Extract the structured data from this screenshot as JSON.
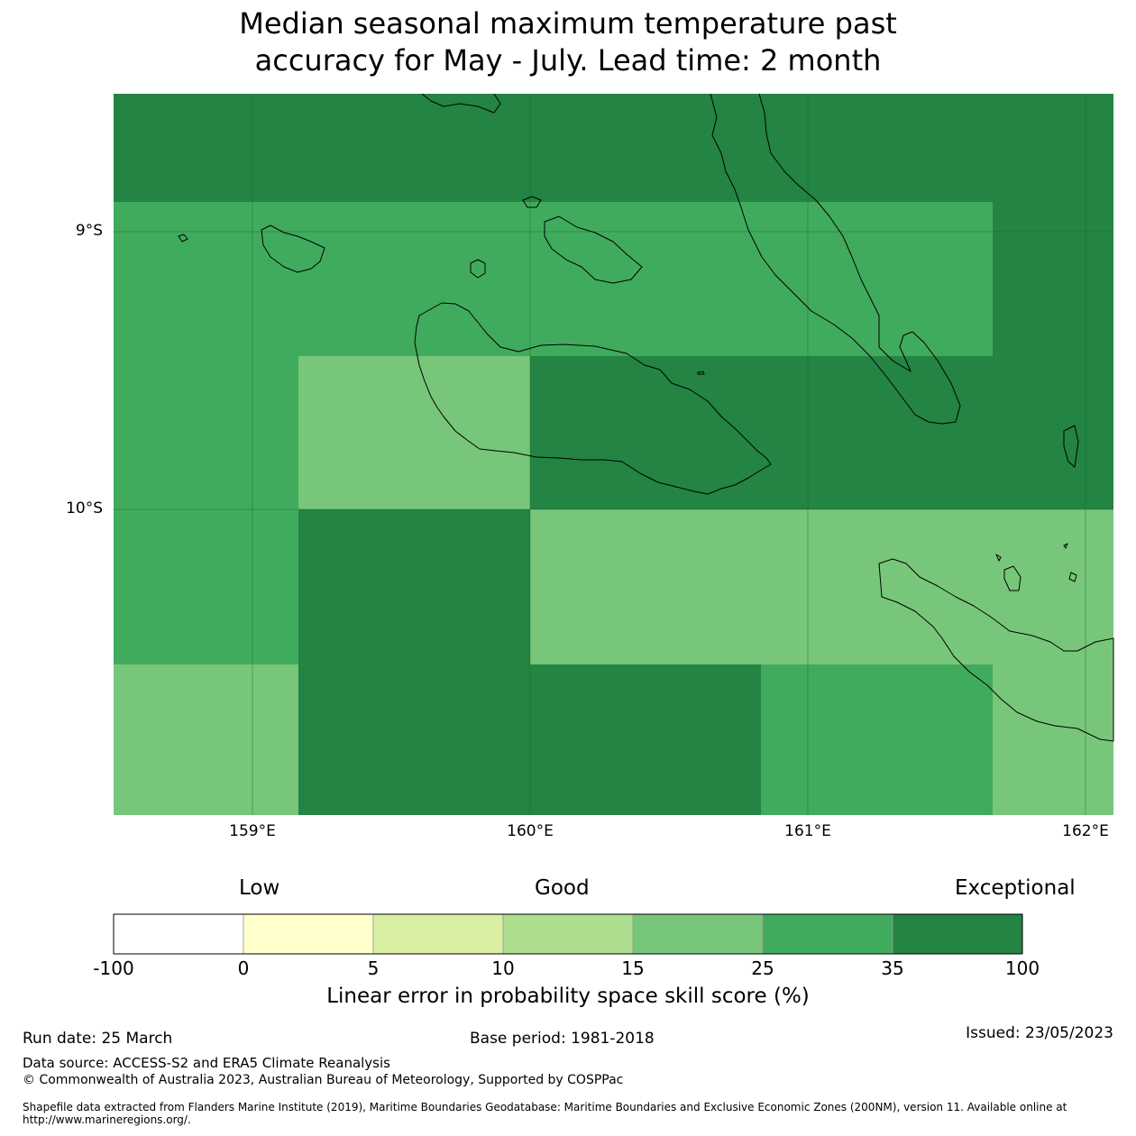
{
  "title_line1": "Median seasonal maximum temperature past",
  "title_line2": "accuracy for May - July. Lead time: 2 month",
  "map": {
    "lat_labels": [
      "9°S",
      "10°S"
    ],
    "lon_labels": [
      "159°E",
      "160°E",
      "161°E",
      "162°E"
    ],
    "colors": {
      "c25_35": "#41ab5d",
      "c15_25": "#78c679",
      "c35_100": "#238443"
    },
    "grid": [
      [
        "c35_100",
        "c35_100",
        "c35_100",
        "c35_100",
        "c35_100"
      ],
      [
        "c25_35",
        "c25_35",
        "c25_35",
        "c25_35",
        "c35_100"
      ],
      [
        "c25_35",
        "c15_25",
        "c35_100",
        "c35_100",
        "c35_100"
      ],
      [
        "c25_35",
        "c35_100",
        "c15_25",
        "c15_25",
        "c15_25"
      ],
      [
        "c15_25",
        "c35_100",
        "c35_100",
        "c25_35",
        "c15_25"
      ]
    ]
  },
  "colorbar": {
    "categories": [
      "Low",
      "Good",
      "Exceptional"
    ],
    "ticks": [
      "-100",
      "0",
      "5",
      "10",
      "15",
      "25",
      "35",
      "100"
    ],
    "colors": [
      "#ffffff",
      "#ffffcc",
      "#d9f0a3",
      "#addd8e",
      "#78c679",
      "#41ab5d",
      "#238443"
    ],
    "label": "Linear error in probability space skill score (%)"
  },
  "footer": {
    "run_date": "Run date: 25 March",
    "base_period": "Base period: 1981-2018",
    "issued": "Issued: 23/05/2023",
    "data_source": "Data source: ACCESS-S2 and ERA5 Climate Reanalysis",
    "copyright": "© Commonwealth of Australia 2023, Australian Bureau of Meteorology, Supported by COSPPac",
    "shapefile": "Shapefile data extracted from Flanders Marine Institute (2019), Maritime Boundaries Geodatabase: Maritime Boundaries and Exclusive Economic Zones (200NM), version 11. Available online at http://www.marineregions.org/."
  }
}
